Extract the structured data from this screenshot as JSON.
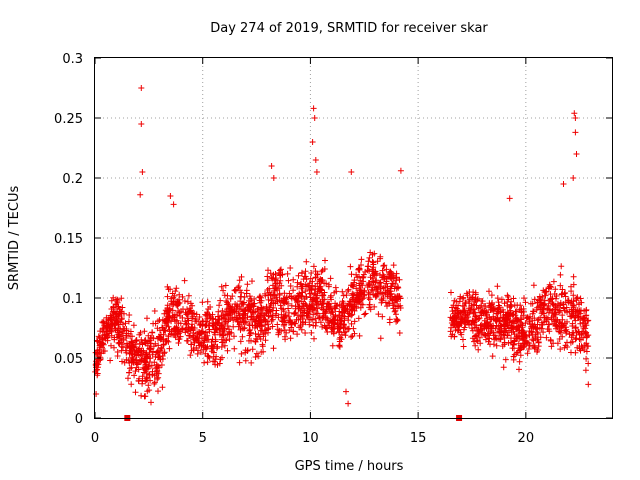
{
  "chart_data": {
    "type": "scatter",
    "title": "Day 274 of 2019, SRMTID for receiver skar",
    "xlabel": "GPS time / hours",
    "ylabel": "SRMTID / TECUs",
    "xlim": [
      0,
      24
    ],
    "ylim": [
      0,
      0.3
    ],
    "x_ticks": [
      "0",
      "5",
      "10",
      "15",
      "20"
    ],
    "y_ticks": [
      "0",
      "0.05",
      "0.1",
      "0.15",
      "0.2",
      "0.25",
      "0.3"
    ],
    "grid": true,
    "marker": "+",
    "color": "#ee0000",
    "data_gap_markers_x": [
      1.5,
      16.9
    ],
    "series": [
      {
        "values_by_hour": [
          {
            "x": 0.0,
            "y": 0.045
          },
          {
            "x": 0.5,
            "y": 0.075
          },
          {
            "x": 1.0,
            "y": 0.085
          },
          {
            "x": 1.5,
            "y": 0.06
          },
          {
            "x": 2.0,
            "y": 0.05
          },
          {
            "x": 2.5,
            "y": 0.045
          },
          {
            "x": 3.0,
            "y": 0.055
          },
          {
            "x": 3.5,
            "y": 0.085
          },
          {
            "x": 4.0,
            "y": 0.08
          },
          {
            "x": 4.5,
            "y": 0.075
          },
          {
            "x": 5.0,
            "y": 0.07
          },
          {
            "x": 5.5,
            "y": 0.065
          },
          {
            "x": 6.0,
            "y": 0.08
          },
          {
            "x": 6.5,
            "y": 0.085
          },
          {
            "x": 7.0,
            "y": 0.085
          },
          {
            "x": 7.5,
            "y": 0.075
          },
          {
            "x": 8.0,
            "y": 0.09
          },
          {
            "x": 8.5,
            "y": 0.095
          },
          {
            "x": 9.0,
            "y": 0.09
          },
          {
            "x": 9.5,
            "y": 0.1
          },
          {
            "x": 10.0,
            "y": 0.1
          },
          {
            "x": 10.5,
            "y": 0.1
          },
          {
            "x": 11.0,
            "y": 0.085
          },
          {
            "x": 11.5,
            "y": 0.08
          },
          {
            "x": 12.0,
            "y": 0.095
          },
          {
            "x": 12.5,
            "y": 0.115
          },
          {
            "x": 13.0,
            "y": 0.115
          },
          {
            "x": 13.5,
            "y": 0.11
          },
          {
            "x": 14.0,
            "y": 0.1
          },
          {
            "x": 14.2,
            "y": 0.09
          },
          {
            "x": 16.5,
            "y": 0.08
          },
          {
            "x": 17.0,
            "y": 0.085
          },
          {
            "x": 17.5,
            "y": 0.085
          },
          {
            "x": 18.0,
            "y": 0.08
          },
          {
            "x": 18.5,
            "y": 0.08
          },
          {
            "x": 19.0,
            "y": 0.08
          },
          {
            "x": 19.5,
            "y": 0.075
          },
          {
            "x": 20.0,
            "y": 0.07
          },
          {
            "x": 20.5,
            "y": 0.08
          },
          {
            "x": 21.0,
            "y": 0.09
          },
          {
            "x": 21.5,
            "y": 0.09
          },
          {
            "x": 22.0,
            "y": 0.085
          },
          {
            "x": 22.5,
            "y": 0.08
          },
          {
            "x": 22.9,
            "y": 0.07
          }
        ],
        "spread_by_hour": [
          {
            "x": 0.0,
            "s": 0.016
          },
          {
            "x": 1.5,
            "s": 0.022
          },
          {
            "x": 3.5,
            "s": 0.024
          },
          {
            "x": 6.0,
            "s": 0.022
          },
          {
            "x": 8.0,
            "s": 0.026
          },
          {
            "x": 10.0,
            "s": 0.026
          },
          {
            "x": 11.5,
            "s": 0.022
          },
          {
            "x": 13.0,
            "s": 0.025
          },
          {
            "x": 14.2,
            "s": 0.022
          },
          {
            "x": 16.5,
            "s": 0.016
          },
          {
            "x": 19.0,
            "s": 0.022
          },
          {
            "x": 21.0,
            "s": 0.024
          },
          {
            "x": 22.9,
            "s": 0.024
          }
        ],
        "segments": [
          [
            0.0,
            14.2
          ],
          [
            16.5,
            22.9
          ]
        ],
        "approx_point_count": 2600,
        "peaks": [
          {
            "x": 2.15,
            "y": 0.275
          },
          {
            "x": 2.15,
            "y": 0.245
          },
          {
            "x": 2.2,
            "y": 0.205
          },
          {
            "x": 2.1,
            "y": 0.186
          },
          {
            "x": 3.5,
            "y": 0.185
          },
          {
            "x": 3.65,
            "y": 0.178
          },
          {
            "x": 8.2,
            "y": 0.21
          },
          {
            "x": 8.3,
            "y": 0.2
          },
          {
            "x": 10.15,
            "y": 0.258
          },
          {
            "x": 10.2,
            "y": 0.25
          },
          {
            "x": 10.1,
            "y": 0.23
          },
          {
            "x": 10.25,
            "y": 0.215
          },
          {
            "x": 10.3,
            "y": 0.205
          },
          {
            "x": 11.9,
            "y": 0.205
          },
          {
            "x": 14.2,
            "y": 0.206
          },
          {
            "x": 22.25,
            "y": 0.254
          },
          {
            "x": 22.3,
            "y": 0.25
          },
          {
            "x": 22.3,
            "y": 0.238
          },
          {
            "x": 22.35,
            "y": 0.22
          },
          {
            "x": 22.2,
            "y": 0.2
          },
          {
            "x": 21.75,
            "y": 0.195
          },
          {
            "x": 19.25,
            "y": 0.183
          }
        ],
        "lows": [
          {
            "x": 11.75,
            "y": 0.012
          },
          {
            "x": 2.6,
            "y": 0.013
          },
          {
            "x": 2.3,
            "y": 0.018
          },
          {
            "x": 0.05,
            "y": 0.02
          },
          {
            "x": 11.65,
            "y": 0.022
          },
          {
            "x": 22.9,
            "y": 0.028
          }
        ]
      }
    ]
  }
}
